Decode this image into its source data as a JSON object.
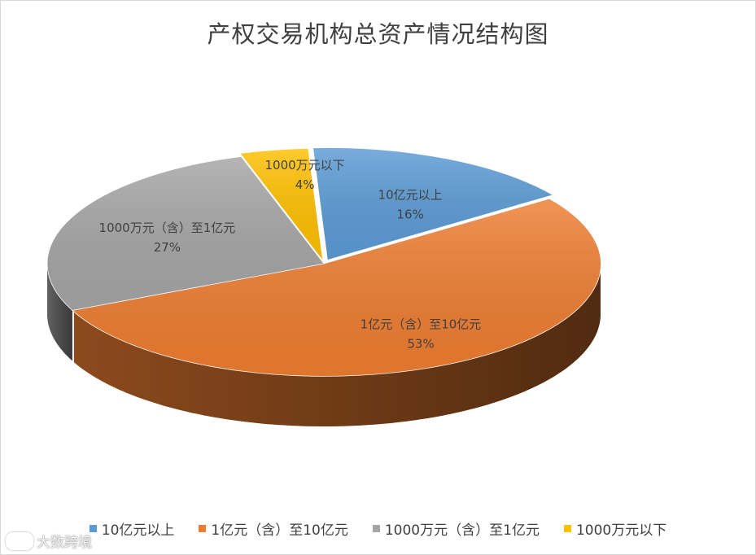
{
  "chart_data": {
    "type": "pie",
    "title": "产权交易机构总资产情况结构图",
    "style": "3d-exploded-pie",
    "legend_position": "bottom",
    "slices": [
      {
        "label": "10亿元以上",
        "value": 16,
        "value_label": "16%",
        "color": "#5B9BD5"
      },
      {
        "label": "1亿元（含）至10亿元",
        "value": 53,
        "value_label": "53%",
        "color": "#ED7D31"
      },
      {
        "label": "1000万元（含）至1亿元",
        "value": 27,
        "value_label": "27%",
        "color": "#A5A5A5"
      },
      {
        "label": "1000万元以下",
        "value": 4,
        "value_label": "4%",
        "color": "#FFC000"
      }
    ]
  },
  "watermark": {
    "text": "大数跨境"
  }
}
